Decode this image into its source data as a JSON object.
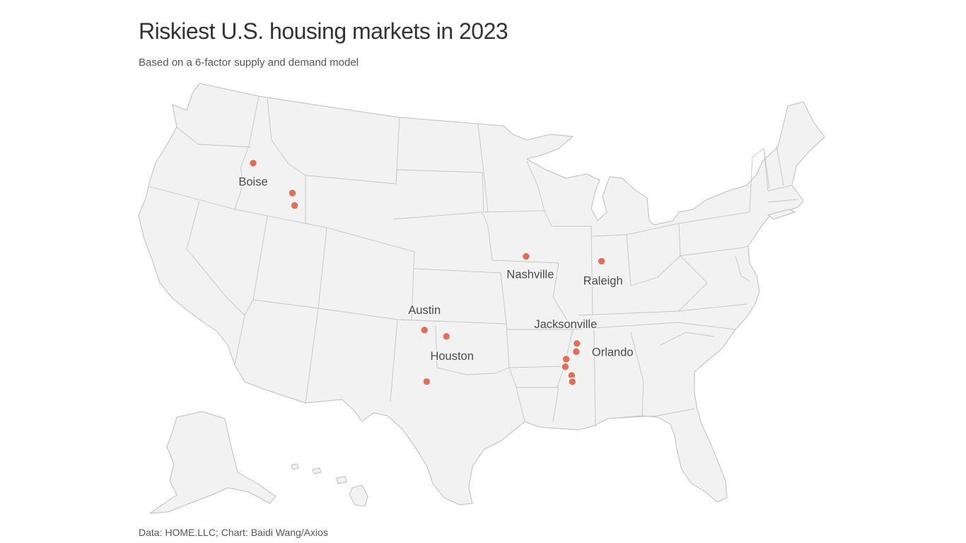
{
  "title": "Riskiest U.S. housing markets in 2023",
  "subtitle": "Based on a 6-factor supply and demand model",
  "source": "Data: HOME.LLC; Chart: Baidi Wang/Axios",
  "colors": {
    "marker": "#ec6b50",
    "land": "#f2f2f2",
    "border": "#c4c4c4",
    "text": "#333333"
  },
  "map": {
    "region": "Contiguous United States with Alaska inset",
    "markets": [
      {
        "label": "Boise",
        "lon": -116.2,
        "lat": 43.62
      },
      {
        "label": "",
        "lon": -111.97,
        "lat": 41.22
      },
      {
        "label": "",
        "lon": -111.73,
        "lat": 40.23
      },
      {
        "label": "Nashville",
        "lon": -86.78,
        "lat": 36.16
      },
      {
        "label": "Raleigh",
        "lon": -78.64,
        "lat": 35.78
      },
      {
        "label": "Austin",
        "lon": -97.74,
        "lat": 30.27
      },
      {
        "label": "Houston",
        "lon": -95.37,
        "lat": 29.76
      },
      {
        "label": "",
        "lon": -97.5,
        "lat": 26.15
      },
      {
        "label": "Jacksonville",
        "lon": -81.3,
        "lat": 29.2
      },
      {
        "label": "Orlando",
        "lon": -81.37,
        "lat": 28.54
      },
      {
        "label": "",
        "lon": -82.46,
        "lat": 27.95
      },
      {
        "label": "",
        "lon": -82.55,
        "lat": 27.34
      },
      {
        "label": "",
        "lon": -81.87,
        "lat": 26.64
      },
      {
        "label": "",
        "lon": -81.8,
        "lat": 26.14
      }
    ]
  }
}
